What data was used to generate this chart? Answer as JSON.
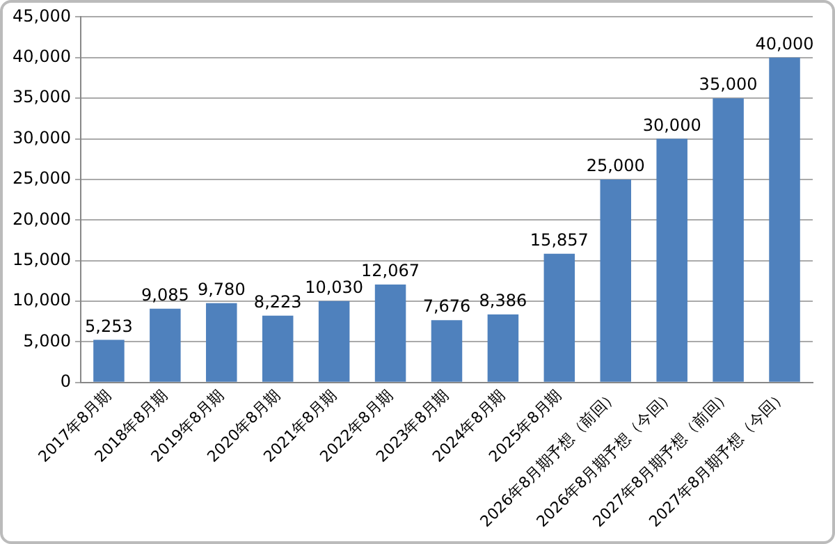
{
  "chart_data": {
    "type": "bar",
    "categories": [
      "2017年8月期",
      "2018年8月期",
      "2019年8月期",
      "2020年8月期",
      "2021年8月期",
      "2022年8月期",
      "2023年8月期",
      "2024年8月期",
      "2025年8月期",
      "2026年8月期予想（前回）",
      "2026年8月期予想（今回）",
      "2027年8月期予想（前回）",
      "2027年8月期予想（今回）"
    ],
    "values": [
      5253,
      9085,
      9780,
      8223,
      10030,
      12067,
      7676,
      8386,
      15857,
      25000,
      30000,
      35000,
      40000
    ],
    "value_labels": [
      "5,253",
      "9,085",
      "9,780",
      "8,223",
      "10,030",
      "12,067",
      "7,676",
      "8,386",
      "15,857",
      "25,000",
      "30,000",
      "35,000",
      "40,000"
    ],
    "color": "#4f81bd",
    "ylim": [
      0,
      45000
    ],
    "yticks": [
      0,
      {
        "value": 5000,
        "label": "5,000"
      },
      {
        "value": 10000,
        "label": "10,000"
      },
      {
        "value": 15000,
        "label": "15,000"
      },
      {
        "value": 20000,
        "label": "20,000"
      },
      {
        "value": 25000,
        "label": "25,000"
      },
      {
        "value": 30000,
        "label": "30,000"
      },
      {
        "value": 35000,
        "label": "35,000"
      },
      {
        "value": 40000,
        "label": "40,000"
      },
      {
        "value": 45000,
        "label": "45,000"
      }
    ],
    "grid": "y",
    "legend": false
  }
}
